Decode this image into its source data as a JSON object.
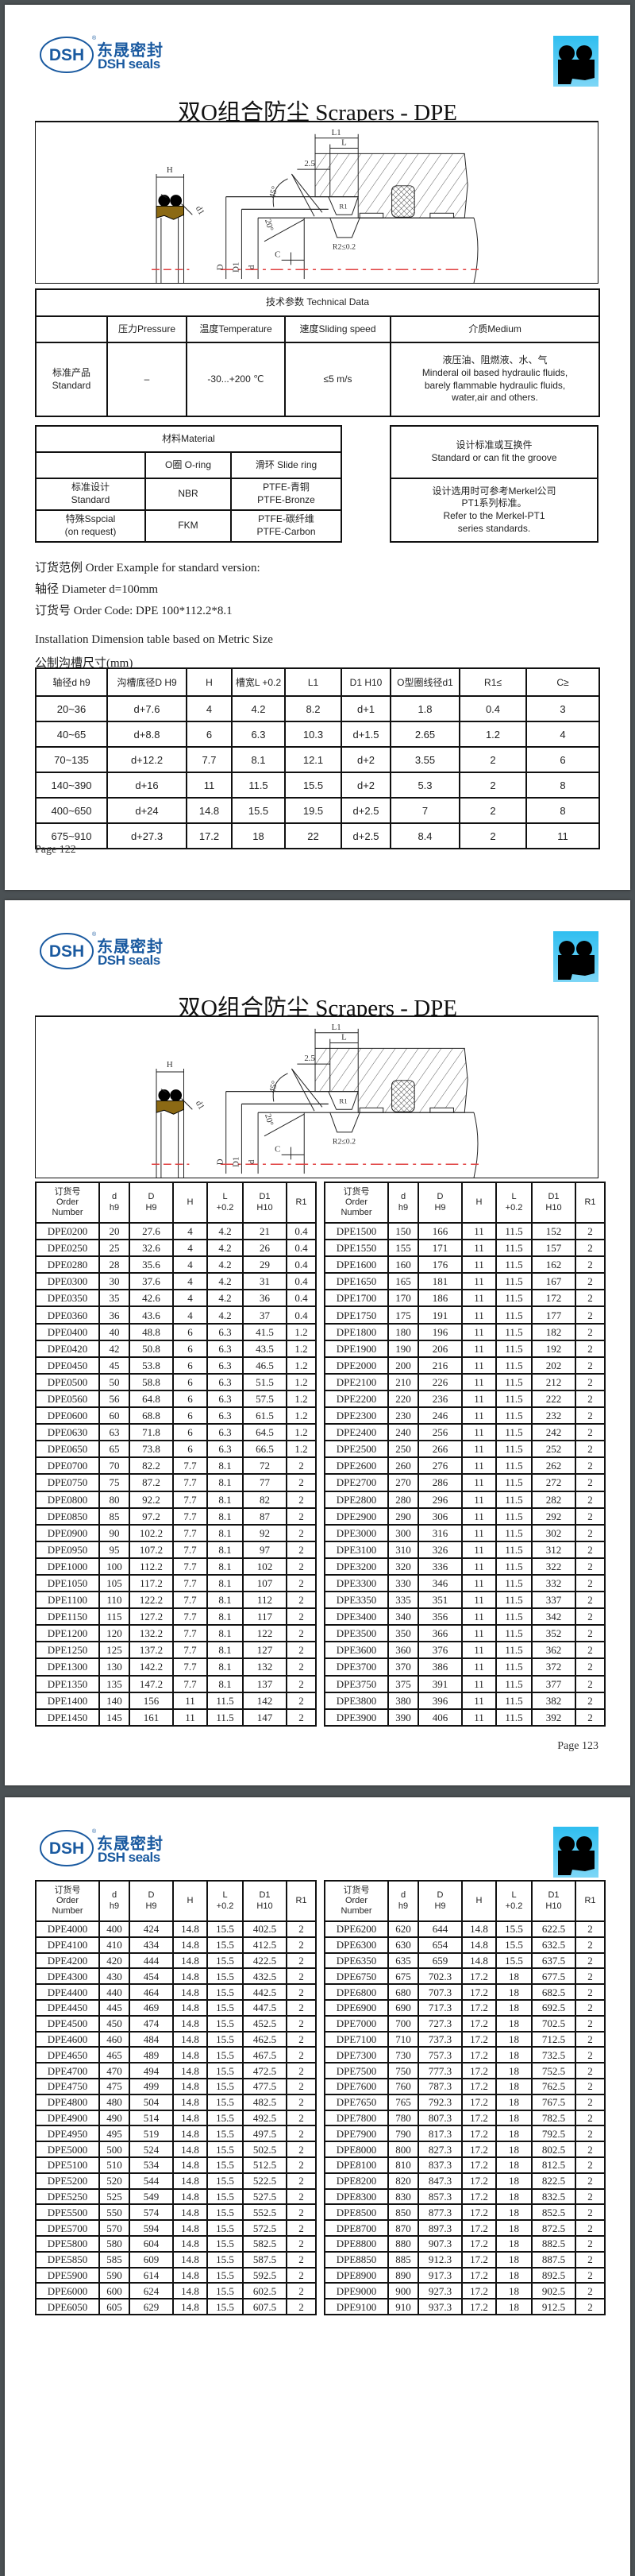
{
  "logo": {
    "mark": "DSH",
    "registered": "®",
    "cn": "东晟密封",
    "en": "DSH seals"
  },
  "title": "双O组合防尘 Scrapers - DPE",
  "colors": {
    "logo_blue": "#1a5aa0",
    "badge_blue": "#2fbef0",
    "seal_brown": "#8b6914",
    "dash_red": "#e04040",
    "viewer_bg": "#4b5154"
  },
  "diagram_labels": {
    "L1": "L1",
    "L": "L",
    "dim_2_5": "2.5",
    "H": "H",
    "angle_45": "45°",
    "d1": "d1",
    "R1": "R1",
    "R2": "R2≤0.2",
    "angle_20": "20°",
    "C": "C",
    "D": "D",
    "D1": "D1",
    "d": "d"
  },
  "technical_data": {
    "title": "技术参数 Technical Data",
    "headers": [
      "",
      "压力Pressure",
      "温度Temperature",
      "速度Sliding speed",
      "介质Medium"
    ],
    "row": {
      "label": "标准产品\nStandard",
      "pressure": "–",
      "temperature": "-30...+200 ℃",
      "speed": "≤5 m/s",
      "medium": "液压油、阻燃液、水、气\nMinderal oil based hydraulic fluids,\nbarely flammable hydraulic fluids,\nwater,air and others."
    }
  },
  "material": {
    "title": "材料Material",
    "headers": [
      "",
      "O圈 O-ring",
      "滑环 Slide ring"
    ],
    "rows": [
      [
        "标准设计\nStandard",
        "NBR",
        "PTFE-青铜\nPTFE-Bronze"
      ],
      [
        "特殊Sspcial\n(on request)",
        "FKM",
        "PTFE-碳纤维\nPTFE-Carbon"
      ]
    ]
  },
  "standard_box": {
    "title": "设计标准或互换件\nStandard or can fit the groove",
    "body": "设计选用时可参考Merkel公司\nPT1系列标准。\nRefer to the Merkel-PT1\nseries standards."
  },
  "order_example": {
    "line1": "订货范例  Order Example for standard version:",
    "line2": "轴径  Diameter  d=100mm",
    "line3": "订货号 Order Code:   DPE 100*112.2*8.1"
  },
  "installation": {
    "title_en": "Installation Dimension table based on Metric Size",
    "title_cn": "公制沟槽尺寸(mm)",
    "headers": [
      "轴径d  h9",
      "沟槽底径D  H9",
      "H",
      "槽宽L +0.2",
      "L1",
      "D1  H10",
      "O型圈线径d1",
      "R1≤",
      "C≥"
    ],
    "rows": [
      [
        "20~36",
        "d+7.6",
        "4",
        "4.2",
        "8.2",
        "d+1",
        "1.8",
        "0.4",
        "3"
      ],
      [
        "40~65",
        "d+8.8",
        "6",
        "6.3",
        "10.3",
        "d+1.5",
        "2.65",
        "1.2",
        "4"
      ],
      [
        "70~135",
        "d+12.2",
        "7.7",
        "8.1",
        "12.1",
        "d+2",
        "3.55",
        "2",
        "6"
      ],
      [
        "140~390",
        "d+16",
        "11",
        "11.5",
        "15.5",
        "d+2",
        "5.3",
        "2",
        "8"
      ],
      [
        "400~650",
        "d+24",
        "14.8",
        "15.5",
        "19.5",
        "d+2.5",
        "7",
        "2",
        "8"
      ],
      [
        "675~910",
        "d+27.3",
        "17.2",
        "18",
        "22",
        "d+2.5",
        "8.4",
        "2",
        "11"
      ]
    ]
  },
  "page1_number": "Page  122",
  "order_table_headers": [
    "订货号\nOrder\nNumber",
    "d\nh9",
    "D\nH9",
    "H",
    "L\n+0.2",
    "D1\nH10",
    "R1"
  ],
  "page2": {
    "page_number": "Page  123",
    "left_rows": [
      [
        "DPE0200",
        "20",
        "27.6",
        "4",
        "4.2",
        "21",
        "0.4"
      ],
      [
        "DPE0250",
        "25",
        "32.6",
        "4",
        "4.2",
        "26",
        "0.4"
      ],
      [
        "DPE0280",
        "28",
        "35.6",
        "4",
        "4.2",
        "29",
        "0.4"
      ],
      [
        "DPE0300",
        "30",
        "37.6",
        "4",
        "4.2",
        "31",
        "0.4"
      ],
      [
        "DPE0350",
        "35",
        "42.6",
        "4",
        "4.2",
        "36",
        "0.4"
      ],
      [
        "DPE0360",
        "36",
        "43.6",
        "4",
        "4.2",
        "37",
        "0.4"
      ],
      [
        "DPE0400",
        "40",
        "48.8",
        "6",
        "6.3",
        "41.5",
        "1.2"
      ],
      [
        "DPE0420",
        "42",
        "50.8",
        "6",
        "6.3",
        "43.5",
        "1.2"
      ],
      [
        "DPE0450",
        "45",
        "53.8",
        "6",
        "6.3",
        "46.5",
        "1.2"
      ],
      [
        "DPE0500",
        "50",
        "58.8",
        "6",
        "6.3",
        "51.5",
        "1.2"
      ],
      [
        "DPE0560",
        "56",
        "64.8",
        "6",
        "6.3",
        "57.5",
        "1.2"
      ],
      [
        "DPE0600",
        "60",
        "68.8",
        "6",
        "6.3",
        "61.5",
        "1.2"
      ],
      [
        "DPE0630",
        "63",
        "71.8",
        "6",
        "6.3",
        "64.5",
        "1.2"
      ],
      [
        "DPE0650",
        "65",
        "73.8",
        "6",
        "6.3",
        "66.5",
        "1.2"
      ],
      [
        "DPE0700",
        "70",
        "82.2",
        "7.7",
        "8.1",
        "72",
        "2"
      ],
      [
        "DPE0750",
        "75",
        "87.2",
        "7.7",
        "8.1",
        "77",
        "2"
      ],
      [
        "DPE0800",
        "80",
        "92.2",
        "7.7",
        "8.1",
        "82",
        "2"
      ],
      [
        "DPE0850",
        "85",
        "97.2",
        "7.7",
        "8.1",
        "87",
        "2"
      ],
      [
        "DPE0900",
        "90",
        "102.2",
        "7.7",
        "8.1",
        "92",
        "2"
      ],
      [
        "DPE0950",
        "95",
        "107.2",
        "7.7",
        "8.1",
        "97",
        "2"
      ],
      [
        "DPE1000",
        "100",
        "112.2",
        "7.7",
        "8.1",
        "102",
        "2"
      ],
      [
        "DPE1050",
        "105",
        "117.2",
        "7.7",
        "8.1",
        "107",
        "2"
      ],
      [
        "DPE1100",
        "110",
        "122.2",
        "7.7",
        "8.1",
        "112",
        "2"
      ],
      [
        "DPE1150",
        "115",
        "127.2",
        "7.7",
        "8.1",
        "117",
        "2"
      ],
      [
        "DPE1200",
        "120",
        "132.2",
        "7.7",
        "8.1",
        "122",
        "2"
      ],
      [
        "DPE1250",
        "125",
        "137.2",
        "7.7",
        "8.1",
        "127",
        "2"
      ],
      [
        "DPE1300",
        "130",
        "142.2",
        "7.7",
        "8.1",
        "132",
        "2"
      ],
      [
        "DPE1350",
        "135",
        "147.2",
        "7.7",
        "8.1",
        "137",
        "2"
      ],
      [
        "DPE1400",
        "140",
        "156",
        "11",
        "11.5",
        "142",
        "2"
      ],
      [
        "DPE1450",
        "145",
        "161",
        "11",
        "11.5",
        "147",
        "2"
      ]
    ],
    "right_rows": [
      [
        "DPE1500",
        "150",
        "166",
        "11",
        "11.5",
        "152",
        "2"
      ],
      [
        "DPE1550",
        "155",
        "171",
        "11",
        "11.5",
        "157",
        "2"
      ],
      [
        "DPE1600",
        "160",
        "176",
        "11",
        "11.5",
        "162",
        "2"
      ],
      [
        "DPE1650",
        "165",
        "181",
        "11",
        "11.5",
        "167",
        "2"
      ],
      [
        "DPE1700",
        "170",
        "186",
        "11",
        "11.5",
        "172",
        "2"
      ],
      [
        "DPE1750",
        "175",
        "191",
        "11",
        "11.5",
        "177",
        "2"
      ],
      [
        "DPE1800",
        "180",
        "196",
        "11",
        "11.5",
        "182",
        "2"
      ],
      [
        "DPE1900",
        "190",
        "206",
        "11",
        "11.5",
        "192",
        "2"
      ],
      [
        "DPE2000",
        "200",
        "216",
        "11",
        "11.5",
        "202",
        "2"
      ],
      [
        "DPE2100",
        "210",
        "226",
        "11",
        "11.5",
        "212",
        "2"
      ],
      [
        "DPE2200",
        "220",
        "236",
        "11",
        "11.5",
        "222",
        "2"
      ],
      [
        "DPE2300",
        "230",
        "246",
        "11",
        "11.5",
        "232",
        "2"
      ],
      [
        "DPE2400",
        "240",
        "256",
        "11",
        "11.5",
        "242",
        "2"
      ],
      [
        "DPE2500",
        "250",
        "266",
        "11",
        "11.5",
        "252",
        "2"
      ],
      [
        "DPE2600",
        "260",
        "276",
        "11",
        "11.5",
        "262",
        "2"
      ],
      [
        "DPE2700",
        "270",
        "286",
        "11",
        "11.5",
        "272",
        "2"
      ],
      [
        "DPE2800",
        "280",
        "296",
        "11",
        "11.5",
        "282",
        "2"
      ],
      [
        "DPE2900",
        "290",
        "306",
        "11",
        "11.5",
        "292",
        "2"
      ],
      [
        "DPE3000",
        "300",
        "316",
        "11",
        "11.5",
        "302",
        "2"
      ],
      [
        "DPE3100",
        "310",
        "326",
        "11",
        "11.5",
        "312",
        "2"
      ],
      [
        "DPE3200",
        "320",
        "336",
        "11",
        "11.5",
        "322",
        "2"
      ],
      [
        "DPE3300",
        "330",
        "346",
        "11",
        "11.5",
        "332",
        "2"
      ],
      [
        "DPE3350",
        "335",
        "351",
        "11",
        "11.5",
        "337",
        "2"
      ],
      [
        "DPE3400",
        "340",
        "356",
        "11",
        "11.5",
        "342",
        "2"
      ],
      [
        "DPE3500",
        "350",
        "366",
        "11",
        "11.5",
        "352",
        "2"
      ],
      [
        "DPE3600",
        "360",
        "376",
        "11",
        "11.5",
        "362",
        "2"
      ],
      [
        "DPE3700",
        "370",
        "386",
        "11",
        "11.5",
        "372",
        "2"
      ],
      [
        "DPE3750",
        "375",
        "391",
        "11",
        "11.5",
        "377",
        "2"
      ],
      [
        "DPE3800",
        "380",
        "396",
        "11",
        "11.5",
        "382",
        "2"
      ],
      [
        "DPE3900",
        "390",
        "406",
        "11",
        "11.5",
        "392",
        "2"
      ]
    ]
  },
  "page3": {
    "left_rows": [
      [
        "DPE4000",
        "400",
        "424",
        "14.8",
        "15.5",
        "402.5",
        "2"
      ],
      [
        "DPE4100",
        "410",
        "434",
        "14.8",
        "15.5",
        "412.5",
        "2"
      ],
      [
        "DPE4200",
        "420",
        "444",
        "14.8",
        "15.5",
        "422.5",
        "2"
      ],
      [
        "DPE4300",
        "430",
        "454",
        "14.8",
        "15.5",
        "432.5",
        "2"
      ],
      [
        "DPE4400",
        "440",
        "464",
        "14.8",
        "15.5",
        "442.5",
        "2"
      ],
      [
        "DPE4450",
        "445",
        "469",
        "14.8",
        "15.5",
        "447.5",
        "2"
      ],
      [
        "DPE4500",
        "450",
        "474",
        "14.8",
        "15.5",
        "452.5",
        "2"
      ],
      [
        "DPE4600",
        "460",
        "484",
        "14.8",
        "15.5",
        "462.5",
        "2"
      ],
      [
        "DPE4650",
        "465",
        "489",
        "14.8",
        "15.5",
        "467.5",
        "2"
      ],
      [
        "DPE4700",
        "470",
        "494",
        "14.8",
        "15.5",
        "472.5",
        "2"
      ],
      [
        "DPE4750",
        "475",
        "499",
        "14.8",
        "15.5",
        "477.5",
        "2"
      ],
      [
        "DPE4800",
        "480",
        "504",
        "14.8",
        "15.5",
        "482.5",
        "2"
      ],
      [
        "DPE4900",
        "490",
        "514",
        "14.8",
        "15.5",
        "492.5",
        "2"
      ],
      [
        "DPE4950",
        "495",
        "519",
        "14.8",
        "15.5",
        "497.5",
        "2"
      ],
      [
        "DPE5000",
        "500",
        "524",
        "14.8",
        "15.5",
        "502.5",
        "2"
      ],
      [
        "DPE5100",
        "510",
        "534",
        "14.8",
        "15.5",
        "512.5",
        "2"
      ],
      [
        "DPE5200",
        "520",
        "544",
        "14.8",
        "15.5",
        "522.5",
        "2"
      ],
      [
        "DPE5250",
        "525",
        "549",
        "14.8",
        "15.5",
        "527.5",
        "2"
      ],
      [
        "DPE5500",
        "550",
        "574",
        "14.8",
        "15.5",
        "552.5",
        "2"
      ],
      [
        "DPE5700",
        "570",
        "594",
        "14.8",
        "15.5",
        "572.5",
        "2"
      ],
      [
        "DPE5800",
        "580",
        "604",
        "14.8",
        "15.5",
        "582.5",
        "2"
      ],
      [
        "DPE5850",
        "585",
        "609",
        "14.8",
        "15.5",
        "587.5",
        "2"
      ],
      [
        "DPE5900",
        "590",
        "614",
        "14.8",
        "15.5",
        "592.5",
        "2"
      ],
      [
        "DPE6000",
        "600",
        "624",
        "14.8",
        "15.5",
        "602.5",
        "2"
      ],
      [
        "DPE6050",
        "605",
        "629",
        "14.8",
        "15.5",
        "607.5",
        "2"
      ]
    ],
    "right_rows": [
      [
        "DPE6200",
        "620",
        "644",
        "14.8",
        "15.5",
        "622.5",
        "2"
      ],
      [
        "DPE6300",
        "630",
        "654",
        "14.8",
        "15.5",
        "632.5",
        "2"
      ],
      [
        "DPE6350",
        "635",
        "659",
        "14.8",
        "15.5",
        "637.5",
        "2"
      ],
      [
        "DPE6750",
        "675",
        "702.3",
        "17.2",
        "18",
        "677.5",
        "2"
      ],
      [
        "DPE6800",
        "680",
        "707.3",
        "17.2",
        "18",
        "682.5",
        "2"
      ],
      [
        "DPE6900",
        "690",
        "717.3",
        "17.2",
        "18",
        "692.5",
        "2"
      ],
      [
        "DPE7000",
        "700",
        "727.3",
        "17.2",
        "18",
        "702.5",
        "2"
      ],
      [
        "DPE7100",
        "710",
        "737.3",
        "17.2",
        "18",
        "712.5",
        "2"
      ],
      [
        "DPE7300",
        "730",
        "757.3",
        "17.2",
        "18",
        "732.5",
        "2"
      ],
      [
        "DPE7500",
        "750",
        "777.3",
        "17.2",
        "18",
        "752.5",
        "2"
      ],
      [
        "DPE7600",
        "760",
        "787.3",
        "17.2",
        "18",
        "762.5",
        "2"
      ],
      [
        "DPE7650",
        "765",
        "792.3",
        "17.2",
        "18",
        "767.5",
        "2"
      ],
      [
        "DPE7800",
        "780",
        "807.3",
        "17.2",
        "18",
        "782.5",
        "2"
      ],
      [
        "DPE7900",
        "790",
        "817.3",
        "17.2",
        "18",
        "792.5",
        "2"
      ],
      [
        "DPE8000",
        "800",
        "827.3",
        "17.2",
        "18",
        "802.5",
        "2"
      ],
      [
        "DPE8100",
        "810",
        "837.3",
        "17.2",
        "18",
        "812.5",
        "2"
      ],
      [
        "DPE8200",
        "820",
        "847.3",
        "17.2",
        "18",
        "822.5",
        "2"
      ],
      [
        "DPE8300",
        "830",
        "857.3",
        "17.2",
        "18",
        "832.5",
        "2"
      ],
      [
        "DPE8500",
        "850",
        "877.3",
        "17.2",
        "18",
        "852.5",
        "2"
      ],
      [
        "DPE8700",
        "870",
        "897.3",
        "17.2",
        "18",
        "872.5",
        "2"
      ],
      [
        "DPE8800",
        "880",
        "907.3",
        "17.2",
        "18",
        "882.5",
        "2"
      ],
      [
        "DPE8850",
        "885",
        "912.3",
        "17.2",
        "18",
        "887.5",
        "2"
      ],
      [
        "DPE8900",
        "890",
        "917.3",
        "17.2",
        "18",
        "892.5",
        "2"
      ],
      [
        "DPE9000",
        "900",
        "927.3",
        "17.2",
        "18",
        "902.5",
        "2"
      ],
      [
        "DPE9100",
        "910",
        "937.3",
        "17.2",
        "18",
        "912.5",
        "2"
      ]
    ]
  }
}
